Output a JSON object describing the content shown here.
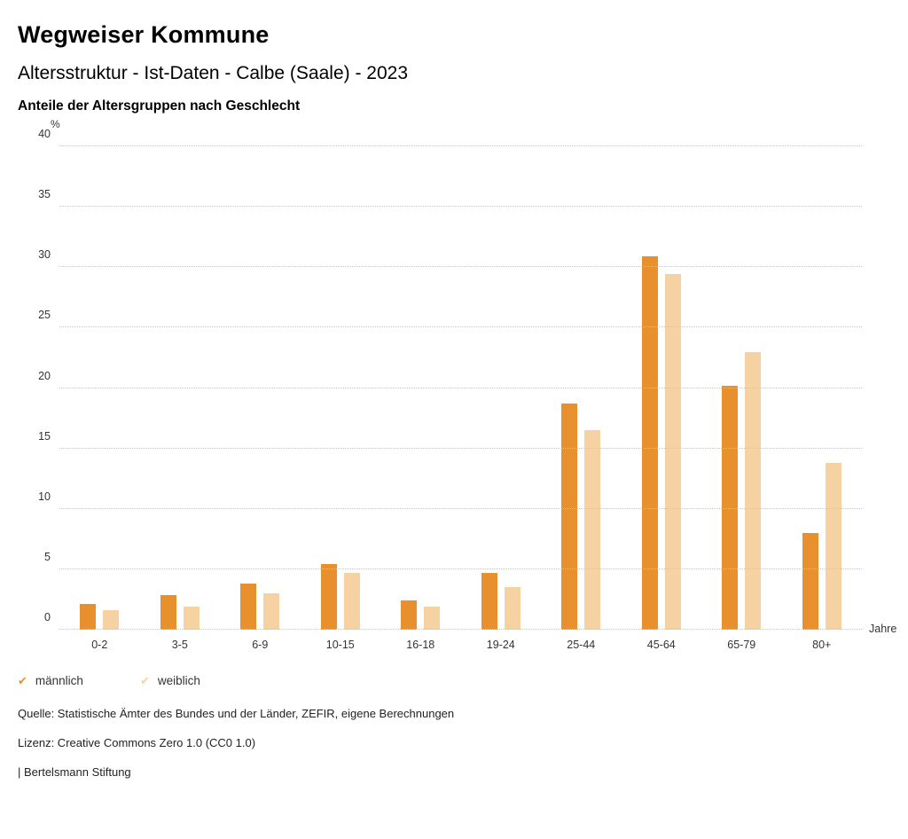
{
  "header": {
    "title": "Wegweiser Kommune",
    "subtitle": "Altersstruktur - Ist-Daten - Calbe (Saale) - 2023",
    "heading": "Anteile der Altersgruppen nach Geschlecht"
  },
  "chart_data": {
    "type": "bar",
    "title": "Anteile der Altersgruppen nach Geschlecht",
    "categories": [
      "0-2",
      "3-5",
      "6-9",
      "10-15",
      "16-18",
      "19-24",
      "25-44",
      "45-64",
      "65-79",
      "80+"
    ],
    "series": [
      {
        "name": "männlich",
        "color": "#e8902e",
        "values": [
          2.1,
          2.9,
          3.8,
          5.4,
          2.4,
          4.7,
          18.7,
          30.9,
          20.2,
          8.0
        ]
      },
      {
        "name": "weiblich",
        "color": "#f6d1a2",
        "values": [
          1.6,
          1.9,
          3.0,
          4.7,
          1.9,
          3.5,
          16.5,
          29.4,
          23.0,
          13.8
        ]
      }
    ],
    "ylabel": "%",
    "xlabel": "Jahre",
    "ylim": [
      0,
      40
    ],
    "yticks": [
      0,
      5,
      10,
      15,
      20,
      25,
      30,
      35,
      40
    ],
    "grid": "horizontal-dotted",
    "legend_position": "bottom-left",
    "legend_marker": "✔"
  },
  "footer": {
    "source": "Quelle: Statistische Ämter des Bundes und der Länder, ZEFIR, eigene Berechnungen",
    "license": "Lizenz: Creative Commons Zero 1.0 (CC0 1.0)",
    "attribution": "| Bertelsmann Stiftung"
  }
}
